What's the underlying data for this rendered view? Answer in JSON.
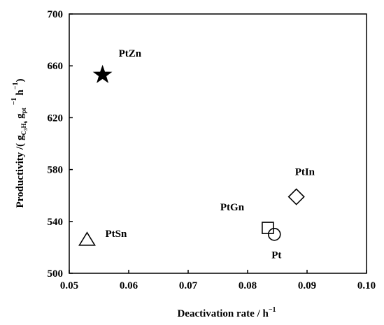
{
  "chart_data": {
    "type": "scatter",
    "title": "",
    "xlabel": "Deactivation rate / h",
    "xlabel_sup": "−1",
    "ylabel": {
      "prefix": "Productivity /(",
      "g1": "g",
      "g1_sub": "C",
      "g1_sub2": "3",
      "g1_sub3": "H",
      "g1_sub4": "6",
      "g2": "g",
      "g2_sub": "pt",
      "sup1": "−1",
      "h": "h",
      "sup2": "−1",
      "suffix": ")"
    },
    "xlim": [
      0.05,
      0.1
    ],
    "ylim": [
      500,
      700
    ],
    "x_ticks": [
      "0.05",
      "0.06",
      "0.07",
      "0.08",
      "0.09",
      "0.10"
    ],
    "y_ticks": [
      "500",
      "540",
      "580",
      "620",
      "660",
      "700"
    ],
    "grid": false,
    "points": [
      {
        "label": "PtZn",
        "x": 0.0556,
        "y": 653,
        "marker": "star-filled"
      },
      {
        "label": "PtIn",
        "x": 0.0882,
        "y": 559,
        "marker": "diamond-open"
      },
      {
        "label": "PtGn",
        "x": 0.0834,
        "y": 535,
        "marker": "square-open"
      },
      {
        "label": "Pt",
        "x": 0.0845,
        "y": 530,
        "marker": "circle-open"
      },
      {
        "label": "PtSn",
        "x": 0.053,
        "y": 526,
        "marker": "triangle-open"
      }
    ]
  }
}
